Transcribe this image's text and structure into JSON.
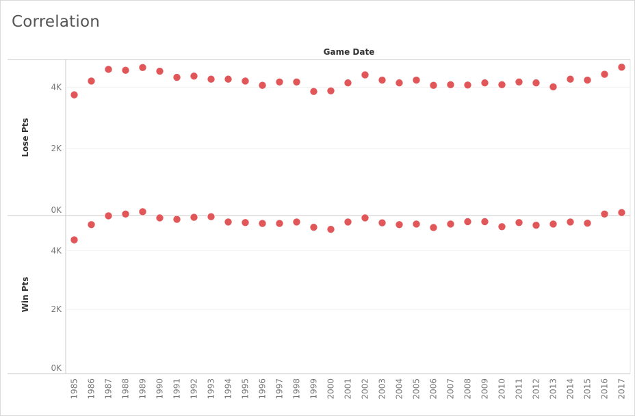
{
  "title": "Correlation",
  "chart_data": {
    "type": "scatter",
    "title": "Correlation",
    "column_header": "Game Date",
    "x": [
      1985,
      1986,
      1987,
      1988,
      1989,
      1990,
      1991,
      1992,
      1993,
      1994,
      1995,
      1996,
      1997,
      1998,
      1999,
      2000,
      2001,
      2002,
      2003,
      2004,
      2005,
      2006,
      2007,
      2008,
      2009,
      2010,
      2011,
      2012,
      2013,
      2014,
      2015,
      2016,
      2017
    ],
    "x_tick_labels": [
      "1985",
      "1986",
      "1987",
      "1988",
      "1989",
      "1990",
      "1991",
      "1992",
      "1993",
      "1994",
      "1995",
      "1996",
      "1997",
      "1998",
      "1999",
      "2000",
      "2001",
      "2002",
      "2003",
      "2004",
      "2005",
      "2006",
      "2007",
      "2008",
      "2009",
      "2010",
      "2011",
      "2012",
      "2013",
      "2014",
      "2015",
      "2016",
      "2017"
    ],
    "marker_color": "#e15759",
    "panes": [
      {
        "ylabel": "Lose Pts",
        "ylim": [
          0,
          4900
        ],
        "y_ticks": [
          0,
          2000,
          4000
        ],
        "y_tick_labels": [
          "0K",
          "2K",
          "4K"
        ],
        "values": [
          3750,
          4200,
          4580,
          4550,
          4640,
          4520,
          4320,
          4360,
          4260,
          4260,
          4200,
          4060,
          4170,
          4170,
          3860,
          3880,
          4140,
          4400,
          4230,
          4140,
          4230,
          4060,
          4080,
          4070,
          4140,
          4080,
          4170,
          4140,
          4010,
          4260,
          4230,
          4420,
          4650
        ]
      },
      {
        "ylabel": "Win Pts",
        "ylim": [
          0,
          5200
        ],
        "y_ticks": [
          0,
          2000,
          4000
        ],
        "y_tick_labels": [
          "0K",
          "2K",
          "4K"
        ],
        "values": [
          4370,
          4890,
          5190,
          5250,
          5330,
          5120,
          5070,
          5140,
          5160,
          4980,
          4960,
          4930,
          4930,
          4980,
          4800,
          4730,
          4980,
          5120,
          4950,
          4890,
          4910,
          4790,
          4910,
          4990,
          4990,
          4820,
          4960,
          4870,
          4910,
          4980,
          4940,
          5250,
          5300
        ]
      }
    ]
  }
}
